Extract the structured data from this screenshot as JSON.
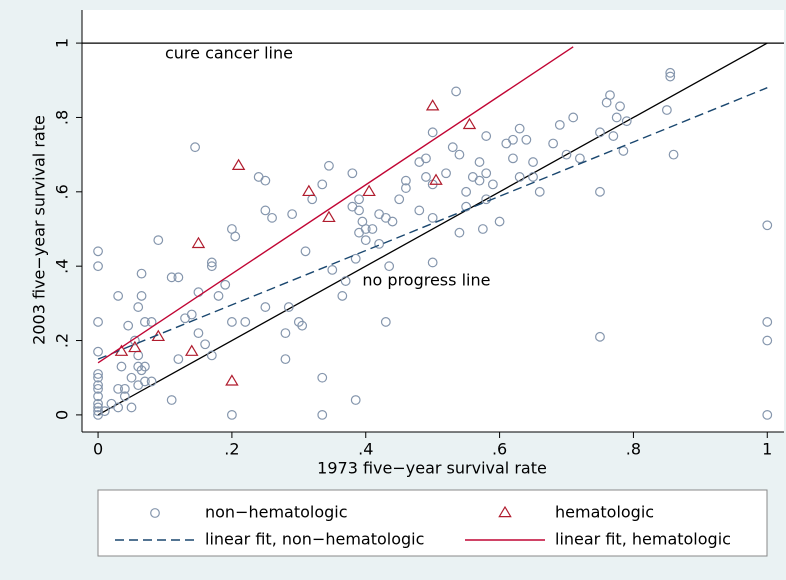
{
  "chart_data": {
    "type": "scatter",
    "x_label": "1973 five−year survival rate",
    "y_label": "2003 five−year survival rate",
    "xlim": [
      -0.024,
      1.025
    ],
    "ylim": [
      -0.046,
      1.089
    ],
    "xticks": [
      0,
      {
        "value": 0.2,
        "label": ".2"
      },
      {
        "value": 0.4,
        "label": ".4"
      },
      {
        "value": 0.6,
        "label": ".6"
      },
      {
        "value": 0.8,
        "label": ".8"
      },
      1
    ],
    "yticks": [
      0,
      {
        "value": 0.2,
        "label": ".2"
      },
      {
        "value": 0.4,
        "label": ".4"
      },
      {
        "value": 0.6,
        "label": ".6"
      },
      {
        "value": 0.8,
        "label": ".8"
      },
      1
    ],
    "annotations": [
      "cure cancer line",
      "no progress line"
    ],
    "hline": 1,
    "reference_lines": [
      {
        "x": [
          0,
          1
        ],
        "values": [
          0,
          1
        ],
        "color": "#000000"
      }
    ],
    "series": [
      {
        "name": "non−hematologic",
        "type": "scatter",
        "marker": "circle",
        "color": "#8596ad",
        "x": [
          0,
          0,
          0,
          0,
          0,
          0,
          0,
          0,
          0,
          0,
          0,
          0,
          0,
          0.01,
          0.02,
          0.03,
          0.03,
          0.04,
          0.04,
          0.05,
          0.05,
          0.06,
          0.07,
          0.06,
          0.065,
          0.07,
          0.06,
          0.055,
          0.06,
          0.065,
          0.07,
          0.08,
          0.065,
          0.03,
          0.045,
          0.09,
          0.035,
          0.08,
          0.11,
          0.11,
          0.12,
          0.12,
          0.13,
          0.14,
          0.145,
          0.15,
          0.15,
          0.16,
          0.17,
          0.17,
          0.17,
          0.18,
          0.19,
          0.2,
          0.2,
          0.205,
          0.2,
          0.22,
          0.24,
          0.25,
          0.25,
          0.25,
          0.26,
          0.28,
          0.28,
          0.285,
          0.29,
          0.3,
          0.305,
          0.31,
          0.32,
          0.335,
          0.335,
          0.335,
          0.345,
          0.35,
          0.37,
          0.365,
          0.38,
          0.38,
          0.385,
          0.385,
          0.39,
          0.39,
          0.39,
          0.395,
          0.4,
          0.4,
          0.41,
          0.42,
          0.42,
          0.43,
          0.43,
          0.435,
          0.44,
          0.45,
          0.46,
          0.46,
          0.48,
          0.48,
          0.49,
          0.5,
          0.5,
          0.5,
          0.5,
          0.49,
          0.52,
          0.53,
          0.535,
          0.54,
          0.54,
          0.55,
          0.55,
          0.56,
          0.57,
          0.57,
          0.575,
          0.58,
          0.58,
          0.58,
          0.59,
          0.6,
          0.61,
          0.62,
          0.62,
          0.63,
          0.63,
          0.64,
          0.65,
          0.65,
          0.66,
          0.68,
          0.69,
          0.7,
          0.71,
          0.72,
          0.75,
          0.75,
          0.75,
          0.76,
          0.765,
          0.77,
          0.775,
          0.78,
          0.785,
          0.79,
          0.85,
          0.855,
          0.855,
          0.86,
          1,
          1,
          1,
          1
        ],
        "values": [
          0.44,
          0.4,
          0.25,
          0.17,
          0.11,
          0.1,
          0.08,
          0.07,
          0.05,
          0.03,
          0.02,
          0.01,
          0,
          0.01,
          0.03,
          0.02,
          0.07,
          0.05,
          0.07,
          0.1,
          0.02,
          0.08,
          0.09,
          0.13,
          0.12,
          0.13,
          0.16,
          0.2,
          0.29,
          0.32,
          0.25,
          0.25,
          0.38,
          0.32,
          0.24,
          0.47,
          0.13,
          0.09,
          0.04,
          0.37,
          0.37,
          0.15,
          0.26,
          0.27,
          0.72,
          0.22,
          0.33,
          0.19,
          0.41,
          0.4,
          0.16,
          0.32,
          0.35,
          0.25,
          0.5,
          0.48,
          0,
          0.25,
          0.64,
          0.63,
          0.29,
          0.55,
          0.53,
          0.22,
          0.15,
          0.29,
          0.54,
          0.25,
          0.24,
          0.44,
          0.58,
          0.62,
          0.1,
          0,
          0.67,
          0.39,
          0.36,
          0.32,
          0.56,
          0.65,
          0.04,
          0.42,
          0.55,
          0.58,
          0.49,
          0.52,
          0.5,
          0.47,
          0.5,
          0.46,
          0.54,
          0.53,
          0.25,
          0.4,
          0.52,
          0.58,
          0.61,
          0.63,
          0.55,
          0.68,
          0.69,
          0.76,
          0.41,
          0.53,
          0.62,
          0.64,
          0.65,
          0.72,
          0.87,
          0.49,
          0.7,
          0.56,
          0.6,
          0.64,
          0.68,
          0.63,
          0.5,
          0.75,
          0.65,
          0.58,
          0.62,
          0.52,
          0.73,
          0.74,
          0.69,
          0.77,
          0.64,
          0.74,
          0.68,
          0.64,
          0.6,
          0.73,
          0.78,
          0.7,
          0.8,
          0.69,
          0.76,
          0.6,
          0.21,
          0.84,
          0.86,
          0.75,
          0.8,
          0.83,
          0.71,
          0.79,
          0.82,
          0.91,
          0.92,
          0.7,
          0.51,
          0.25,
          0.2,
          0
        ]
      },
      {
        "name": "hematologic",
        "type": "scatter",
        "marker": "triangle",
        "color": "#b01c2e",
        "x": [
          0.035,
          0.055,
          0.09,
          0.14,
          0.15,
          0.2,
          0.21,
          0.315,
          0.345,
          0.405,
          0.5,
          0.505,
          0.555
        ],
        "values": [
          0.17,
          0.18,
          0.21,
          0.17,
          0.46,
          0.09,
          0.67,
          0.6,
          0.53,
          0.6,
          0.83,
          0.63,
          0.78
        ]
      },
      {
        "name": "linear fit, non−hematologic",
        "type": "line",
        "dash": true,
        "color": "#1a476f",
        "x": [
          0,
          1
        ],
        "values": [
          0.15,
          0.88
        ]
      },
      {
        "name": "linear fit, hematologic",
        "type": "line",
        "dash": false,
        "color": "#c10534",
        "x": [
          0,
          0.71
        ],
        "values": [
          0.14,
          0.99
        ]
      }
    ]
  }
}
